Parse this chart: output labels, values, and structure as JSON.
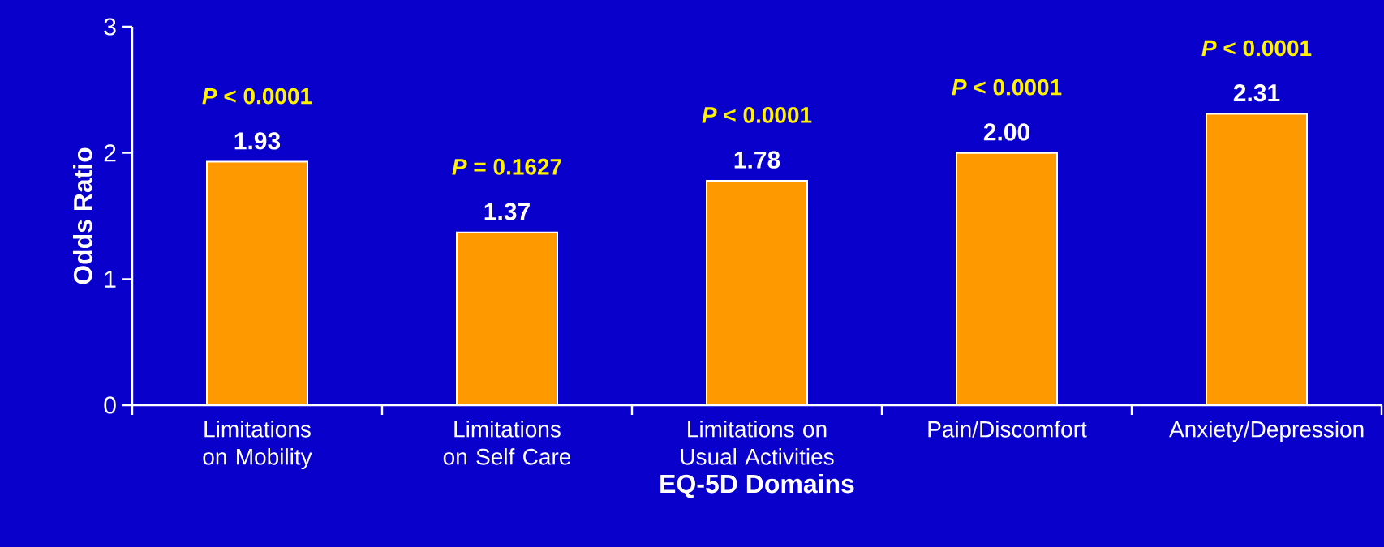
{
  "chart_data": {
    "type": "bar",
    "xlabel": "EQ-5D Domains",
    "ylabel": "Odds Ratio",
    "categories": [
      "Limitations on Mobility",
      "Limitations on Self Care",
      "Limitations on Usual Activities",
      "Pain/Discomfort",
      "Anxiety/Depression"
    ],
    "values": [
      1.93,
      1.37,
      1.78,
      2.0,
      2.31
    ],
    "color": "#ff9900",
    "ylim": [
      0,
      3
    ],
    "yticks": [
      0,
      1,
      2,
      3
    ],
    "value_labels": [
      "1.93",
      "1.37",
      "1.78",
      "2.00",
      "2.31"
    ],
    "grid": false,
    "annotations": [
      {
        "text": "*P* < 0.0001",
        "x": "Limitations on Mobility",
        "y": 1.93
      },
      {
        "text": "*P* = 0.1627",
        "x": "Limitations on Self Care",
        "y": 1.37
      },
      {
        "text": "*P* < 0.0001",
        "x": "Limitations on Usual Activities",
        "y": 1.78
      },
      {
        "text": "*P* < 0.0001",
        "x": "Pain/Discomfort",
        "y": 2.0
      },
      {
        "text": "*P* < 0.0001",
        "x": "Anxiety/Depression",
        "y": 2.31
      }
    ]
  }
}
